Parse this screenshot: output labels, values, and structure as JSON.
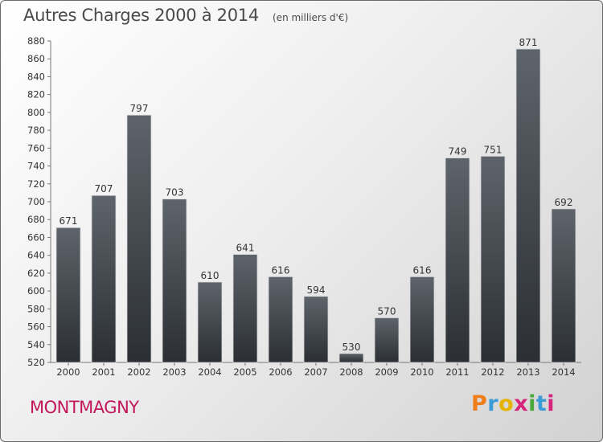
{
  "chart": {
    "title": "Autres Charges 2000 à 2014",
    "subtitle": "(en milliers d'€)"
  },
  "footer": {
    "city": "MONTMAGNY",
    "brand": "Proxiti",
    "brand_colors": [
      "#ee7d1a",
      "#3a9bd5",
      "#e6b400",
      "#d6247d",
      "#4aa83c",
      "#3a9bd5",
      "#d6247d"
    ]
  },
  "chart_data": {
    "type": "bar",
    "title": "Autres Charges 2000 à 2014",
    "subtitle": "(en milliers d'€)",
    "xlabel": "",
    "ylabel": "",
    "categories": [
      "2000",
      "2001",
      "2002",
      "2003",
      "2004",
      "2005",
      "2006",
      "2007",
      "2008",
      "2009",
      "2010",
      "2011",
      "2012",
      "2013",
      "2014"
    ],
    "values": [
      671,
      707,
      797,
      703,
      610,
      641,
      616,
      594,
      530,
      570,
      616,
      749,
      751,
      871,
      692
    ],
    "ylim": [
      520,
      880
    ],
    "yticks": [
      520,
      540,
      560,
      580,
      600,
      620,
      640,
      660,
      680,
      700,
      720,
      740,
      760,
      780,
      800,
      820,
      840,
      860,
      880
    ],
    "grid": false,
    "legend": "none",
    "bar_color": "#3b3f45"
  }
}
